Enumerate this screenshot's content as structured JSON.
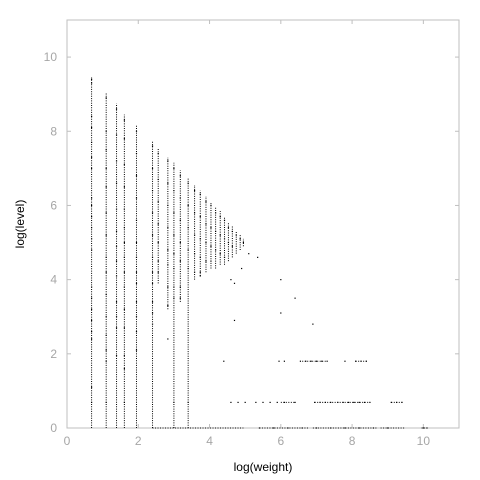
{
  "chart_data": {
    "type": "scatter",
    "title": "",
    "xlabel": "log(weight)",
    "ylabel": "log(level)",
    "xlim": [
      0,
      11
    ],
    "ylim": [
      0,
      11
    ],
    "xticks": [
      "0",
      "2",
      "4",
      "6",
      "8",
      "10"
    ],
    "yticks": [
      "0",
      "2",
      "4",
      "6",
      "8",
      "10"
    ],
    "grid": false,
    "legend": "none",
    "colors": {
      "points": "#000000",
      "frame": "#bfbfbf",
      "tick_labels": "#a6a6a6",
      "background": "#ffffff"
    },
    "columns": [
      {
        "x": 0.69,
        "y_min": 0.0,
        "y_max": 9.45
      },
      {
        "x": 1.1,
        "y_min": 0.0,
        "y_max": 9.05
      },
      {
        "x": 1.39,
        "y_min": 0.0,
        "y_max": 8.75
      },
      {
        "x": 1.61,
        "y_min": 0.0,
        "y_max": 8.45
      },
      {
        "x": 1.95,
        "y_min": 0.0,
        "y_max": 8.15
      },
      {
        "x": 2.4,
        "y_min": 0.0,
        "y_max": 7.75
      },
      {
        "x": 2.56,
        "y_min": 3.9,
        "y_max": 7.55
      },
      {
        "x": 2.83,
        "y_min": 3.2,
        "y_max": 7.3
      },
      {
        "x": 3.0,
        "y_min": 0.0,
        "y_max": 7.15
      },
      {
        "x": 3.18,
        "y_min": 3.4,
        "y_max": 6.95
      },
      {
        "x": 3.4,
        "y_min": 0.0,
        "y_max": 6.75
      },
      {
        "x": 3.58,
        "y_min": 4.0,
        "y_max": 6.55
      },
      {
        "x": 3.74,
        "y_min": 4.1,
        "y_max": 6.4
      },
      {
        "x": 3.9,
        "y_min": 4.2,
        "y_max": 6.25
      },
      {
        "x": 4.04,
        "y_min": 4.3,
        "y_max": 6.1
      },
      {
        "x": 4.17,
        "y_min": 4.3,
        "y_max": 5.95
      },
      {
        "x": 4.3,
        "y_min": 4.4,
        "y_max": 5.85
      },
      {
        "x": 4.42,
        "y_min": 4.4,
        "y_max": 5.7
      },
      {
        "x": 4.53,
        "y_min": 4.5,
        "y_max": 5.55
      },
      {
        "x": 4.64,
        "y_min": 4.6,
        "y_max": 5.45
      },
      {
        "x": 4.75,
        "y_min": 4.7,
        "y_max": 5.3
      },
      {
        "x": 4.86,
        "y_min": 4.8,
        "y_max": 5.2
      },
      {
        "x": 4.95,
        "y_min": 4.9,
        "y_max": 5.1
      }
    ],
    "points": [
      {
        "x": 0.69,
        "y": 9.4
      },
      {
        "x": 0.69,
        "y": 9.3
      },
      {
        "x": 0.69,
        "y": 8.4
      },
      {
        "x": 0.69,
        "y": 8.1
      },
      {
        "x": 0.69,
        "y": 7.7
      },
      {
        "x": 0.69,
        "y": 7.3
      },
      {
        "x": 0.69,
        "y": 7.0
      },
      {
        "x": 0.69,
        "y": 6.2
      },
      {
        "x": 0.69,
        "y": 6.0
      },
      {
        "x": 0.69,
        "y": 5.7
      },
      {
        "x": 0.69,
        "y": 5.4
      },
      {
        "x": 0.69,
        "y": 5.1
      },
      {
        "x": 0.69,
        "y": 4.8
      },
      {
        "x": 0.69,
        "y": 3.8
      },
      {
        "x": 0.69,
        "y": 3.5
      },
      {
        "x": 0.69,
        "y": 3.2
      },
      {
        "x": 0.69,
        "y": 2.9
      },
      {
        "x": 0.69,
        "y": 2.6
      },
      {
        "x": 0.69,
        "y": 2.4
      },
      {
        "x": 0.69,
        "y": 1.1
      },
      {
        "x": 0.69,
        "y": 0.69
      },
      {
        "x": 1.1,
        "y": 8.9
      },
      {
        "x": 1.1,
        "y": 8.0
      },
      {
        "x": 1.1,
        "y": 7.5
      },
      {
        "x": 1.1,
        "y": 7.0
      },
      {
        "x": 1.1,
        "y": 6.5
      },
      {
        "x": 1.1,
        "y": 5.8
      },
      {
        "x": 1.1,
        "y": 5.2
      },
      {
        "x": 1.1,
        "y": 4.6
      },
      {
        "x": 1.1,
        "y": 4.2
      },
      {
        "x": 1.1,
        "y": 3.6
      },
      {
        "x": 1.1,
        "y": 3.0
      },
      {
        "x": 1.1,
        "y": 2.5
      },
      {
        "x": 1.1,
        "y": 2.1
      },
      {
        "x": 1.1,
        "y": 1.8
      },
      {
        "x": 1.1,
        "y": 0.69
      },
      {
        "x": 1.39,
        "y": 8.6
      },
      {
        "x": 1.39,
        "y": 7.9
      },
      {
        "x": 1.39,
        "y": 7.2
      },
      {
        "x": 1.39,
        "y": 6.6
      },
      {
        "x": 1.39,
        "y": 5.9
      },
      {
        "x": 1.39,
        "y": 5.3
      },
      {
        "x": 1.39,
        "y": 4.9
      },
      {
        "x": 1.39,
        "y": 4.5
      },
      {
        "x": 1.39,
        "y": 4.1
      },
      {
        "x": 1.39,
        "y": 3.4
      },
      {
        "x": 1.39,
        "y": 3.0
      },
      {
        "x": 1.39,
        "y": 2.7
      },
      {
        "x": 1.39,
        "y": 1.95
      },
      {
        "x": 1.61,
        "y": 8.3
      },
      {
        "x": 1.61,
        "y": 7.8
      },
      {
        "x": 1.61,
        "y": 7.1
      },
      {
        "x": 1.61,
        "y": 6.5
      },
      {
        "x": 1.61,
        "y": 5.9
      },
      {
        "x": 1.61,
        "y": 5.4
      },
      {
        "x": 1.61,
        "y": 5.0
      },
      {
        "x": 1.61,
        "y": 4.6
      },
      {
        "x": 1.61,
        "y": 4.2
      },
      {
        "x": 1.61,
        "y": 3.8
      },
      {
        "x": 1.61,
        "y": 3.2
      },
      {
        "x": 1.61,
        "y": 2.7
      },
      {
        "x": 1.61,
        "y": 1.95
      },
      {
        "x": 1.61,
        "y": 1.6
      },
      {
        "x": 1.61,
        "y": 0.69
      },
      {
        "x": 1.95,
        "y": 8.0
      },
      {
        "x": 1.95,
        "y": 7.4
      },
      {
        "x": 1.95,
        "y": 6.8
      },
      {
        "x": 1.95,
        "y": 6.2
      },
      {
        "x": 1.95,
        "y": 5.6
      },
      {
        "x": 1.95,
        "y": 5.0
      },
      {
        "x": 1.95,
        "y": 4.6
      },
      {
        "x": 1.95,
        "y": 4.2
      },
      {
        "x": 1.95,
        "y": 3.9
      },
      {
        "x": 1.95,
        "y": 3.4
      },
      {
        "x": 1.95,
        "y": 3.0
      },
      {
        "x": 1.95,
        "y": 2.6
      },
      {
        "x": 1.95,
        "y": 2.1
      },
      {
        "x": 2.4,
        "y": 7.6
      },
      {
        "x": 2.4,
        "y": 7.0
      },
      {
        "x": 2.4,
        "y": 6.4
      },
      {
        "x": 2.4,
        "y": 5.8
      },
      {
        "x": 2.4,
        "y": 5.2
      },
      {
        "x": 2.4,
        "y": 4.6
      },
      {
        "x": 2.4,
        "y": 4.2
      },
      {
        "x": 2.4,
        "y": 3.9
      },
      {
        "x": 2.4,
        "y": 3.4
      },
      {
        "x": 2.4,
        "y": 3.1
      },
      {
        "x": 2.4,
        "y": 2.8
      },
      {
        "x": 2.56,
        "y": 7.4
      },
      {
        "x": 2.56,
        "y": 6.7
      },
      {
        "x": 2.56,
        "y": 6.1
      },
      {
        "x": 2.56,
        "y": 5.5
      },
      {
        "x": 2.56,
        "y": 5.0
      },
      {
        "x": 2.56,
        "y": 4.5
      },
      {
        "x": 2.56,
        "y": 4.2
      },
      {
        "x": 2.83,
        "y": 7.2
      },
      {
        "x": 2.83,
        "y": 6.6
      },
      {
        "x": 2.83,
        "y": 6.0
      },
      {
        "x": 2.83,
        "y": 5.4
      },
      {
        "x": 2.83,
        "y": 4.8
      },
      {
        "x": 2.83,
        "y": 4.4
      },
      {
        "x": 2.83,
        "y": 3.8
      },
      {
        "x": 2.83,
        "y": 3.3
      },
      {
        "x": 2.83,
        "y": 2.4
      },
      {
        "x": 3.0,
        "y": 7.0
      },
      {
        "x": 3.0,
        "y": 6.4
      },
      {
        "x": 3.0,
        "y": 5.8
      },
      {
        "x": 3.0,
        "y": 5.2
      },
      {
        "x": 3.0,
        "y": 4.7
      },
      {
        "x": 3.0,
        "y": 4.3
      },
      {
        "x": 3.0,
        "y": 3.8
      },
      {
        "x": 3.0,
        "y": 3.5
      },
      {
        "x": 3.0,
        "y": 0.69
      },
      {
        "x": 3.18,
        "y": 6.8
      },
      {
        "x": 3.18,
        "y": 6.2
      },
      {
        "x": 3.18,
        "y": 5.6
      },
      {
        "x": 3.18,
        "y": 5.0
      },
      {
        "x": 3.18,
        "y": 4.5
      },
      {
        "x": 3.18,
        "y": 3.8
      },
      {
        "x": 3.18,
        "y": 3.5
      },
      {
        "x": 3.4,
        "y": 6.6
      },
      {
        "x": 3.4,
        "y": 6.0
      },
      {
        "x": 3.4,
        "y": 5.4
      },
      {
        "x": 3.4,
        "y": 4.8
      },
      {
        "x": 3.4,
        "y": 4.3
      },
      {
        "x": 3.4,
        "y": 0.69
      },
      {
        "x": 3.58,
        "y": 6.4
      },
      {
        "x": 3.58,
        "y": 5.8
      },
      {
        "x": 3.58,
        "y": 5.2
      },
      {
        "x": 3.58,
        "y": 4.7
      },
      {
        "x": 3.58,
        "y": 4.2
      },
      {
        "x": 3.74,
        "y": 6.3
      },
      {
        "x": 3.74,
        "y": 5.7
      },
      {
        "x": 3.74,
        "y": 5.1
      },
      {
        "x": 3.74,
        "y": 4.6
      },
      {
        "x": 3.74,
        "y": 4.2
      },
      {
        "x": 3.9,
        "y": 6.1
      },
      {
        "x": 3.9,
        "y": 5.5
      },
      {
        "x": 3.9,
        "y": 5.0
      },
      {
        "x": 3.9,
        "y": 4.5
      },
      {
        "x": 4.04,
        "y": 6.0
      },
      {
        "x": 4.04,
        "y": 5.4
      },
      {
        "x": 4.04,
        "y": 4.9
      },
      {
        "x": 4.04,
        "y": 4.5
      },
      {
        "x": 4.17,
        "y": 5.8
      },
      {
        "x": 4.17,
        "y": 5.3
      },
      {
        "x": 4.17,
        "y": 4.8
      },
      {
        "x": 4.3,
        "y": 5.7
      },
      {
        "x": 4.3,
        "y": 5.2
      },
      {
        "x": 4.3,
        "y": 4.7
      },
      {
        "x": 4.42,
        "y": 5.6
      },
      {
        "x": 4.42,
        "y": 5.1
      },
      {
        "x": 4.42,
        "y": 4.6
      },
      {
        "x": 4.53,
        "y": 5.4
      },
      {
        "x": 4.53,
        "y": 5.0
      },
      {
        "x": 4.64,
        "y": 5.3
      },
      {
        "x": 4.64,
        "y": 4.9
      },
      {
        "x": 4.75,
        "y": 5.2
      },
      {
        "x": 4.86,
        "y": 5.1
      },
      {
        "x": 4.95,
        "y": 5.0
      },
      {
        "x": 3.74,
        "y": 4.1
      },
      {
        "x": 4.6,
        "y": 4.0
      },
      {
        "x": 4.9,
        "y": 4.3
      },
      {
        "x": 5.1,
        "y": 4.7
      },
      {
        "x": 5.35,
        "y": 4.6
      },
      {
        "x": 6.0,
        "y": 4.0
      },
      {
        "x": 4.7,
        "y": 3.9
      },
      {
        "x": 6.4,
        "y": 3.5
      },
      {
        "x": 6.0,
        "y": 3.1
      },
      {
        "x": 4.7,
        "y": 2.9
      },
      {
        "x": 6.9,
        "y": 2.8
      },
      {
        "x": 4.4,
        "y": 1.8
      },
      {
        "x": 5.95,
        "y": 1.8
      },
      {
        "x": 6.1,
        "y": 1.8
      },
      {
        "x": 6.55,
        "y": 1.8
      },
      {
        "x": 6.7,
        "y": 1.8
      },
      {
        "x": 6.85,
        "y": 1.8
      },
      {
        "x": 7.0,
        "y": 1.8
      },
      {
        "x": 7.15,
        "y": 1.8
      },
      {
        "x": 7.3,
        "y": 1.8
      },
      {
        "x": 7.8,
        "y": 1.8
      },
      {
        "x": 8.1,
        "y": 1.8
      },
      {
        "x": 8.25,
        "y": 1.8
      },
      {
        "x": 8.4,
        "y": 1.8
      },
      {
        "x": 4.6,
        "y": 0.69
      },
      {
        "x": 4.8,
        "y": 0.69
      },
      {
        "x": 5.0,
        "y": 0.69
      },
      {
        "x": 5.3,
        "y": 0.69
      },
      {
        "x": 5.5,
        "y": 0.69
      },
      {
        "x": 5.7,
        "y": 0.69
      },
      {
        "x": 5.9,
        "y": 0.69
      },
      {
        "x": 6.1,
        "y": 0.69
      },
      {
        "x": 6.4,
        "y": 0.69
      },
      {
        "x": 6.95,
        "y": 0.69
      },
      {
        "x": 7.1,
        "y": 0.69
      },
      {
        "x": 7.25,
        "y": 0.69
      },
      {
        "x": 7.4,
        "y": 0.69
      },
      {
        "x": 7.6,
        "y": 0.69
      },
      {
        "x": 7.75,
        "y": 0.69
      },
      {
        "x": 7.9,
        "y": 0.69
      },
      {
        "x": 8.05,
        "y": 0.69
      },
      {
        "x": 8.2,
        "y": 0.69
      },
      {
        "x": 8.35,
        "y": 0.69
      },
      {
        "x": 8.5,
        "y": 0.69
      },
      {
        "x": 9.1,
        "y": 0.69
      },
      {
        "x": 9.25,
        "y": 0.69
      },
      {
        "x": 9.4,
        "y": 0.69
      },
      {
        "x": 5.4,
        "y": 0.0
      },
      {
        "x": 5.8,
        "y": 0.0
      },
      {
        "x": 6.2,
        "y": 0.0
      },
      {
        "x": 6.6,
        "y": 0.0
      },
      {
        "x": 7.0,
        "y": 0.0
      },
      {
        "x": 7.4,
        "y": 0.0
      },
      {
        "x": 7.8,
        "y": 0.0
      },
      {
        "x": 8.2,
        "y": 0.0
      },
      {
        "x": 8.6,
        "y": 0.0
      },
      {
        "x": 9.0,
        "y": 0.0
      },
      {
        "x": 10.0,
        "y": 0.0
      },
      {
        "x": 10.1,
        "y": 0.0
      }
    ],
    "segments": [
      {
        "x1": 2.4,
        "x2": 4.95,
        "y": 0.0
      },
      {
        "x1": 5.4,
        "x2": 6.8,
        "y": 0.0
      },
      {
        "x1": 6.9,
        "x2": 8.7,
        "y": 0.0
      },
      {
        "x1": 8.8,
        "x2": 9.5,
        "y": 0.0
      },
      {
        "x1": 6.95,
        "x2": 8.5,
        "y": 0.69
      },
      {
        "x1": 9.1,
        "x2": 9.45,
        "y": 0.69
      },
      {
        "x1": 6.0,
        "x2": 6.4,
        "y": 0.69
      },
      {
        "x1": 8.1,
        "x2": 8.45,
        "y": 1.8
      },
      {
        "x1": 6.6,
        "x2": 7.3,
        "y": 1.8
      },
      {
        "x1": 9.95,
        "x2": 10.15,
        "y": 0.0
      }
    ]
  }
}
